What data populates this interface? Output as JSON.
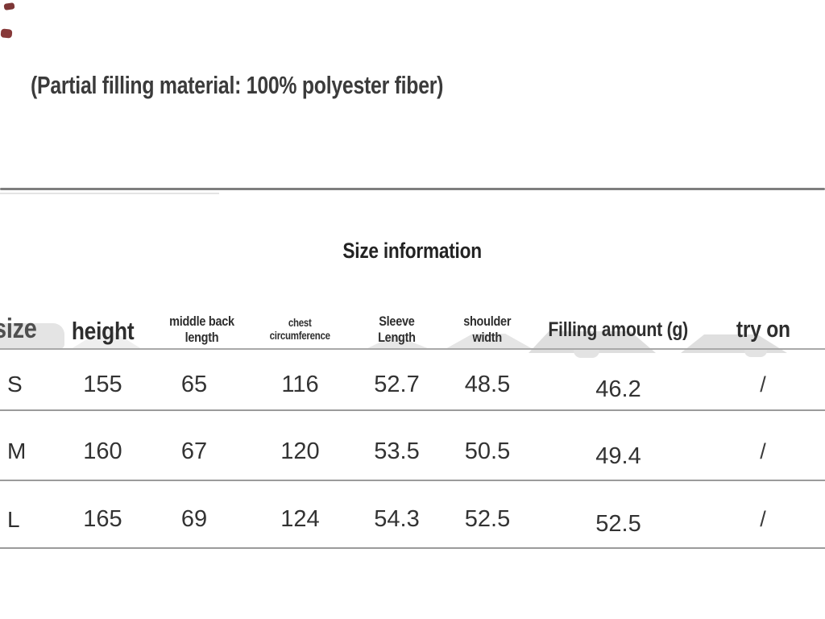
{
  "note": "(Partial filling material: 100% polyester fiber)",
  "section": {
    "title": "Size information"
  },
  "table": {
    "headers": [
      "size",
      "height",
      "middle back\nlength",
      "chest\ncircumference",
      "Sleeve\nLength",
      "shoulder\nwidth",
      "Filling amount (g)",
      "try on"
    ],
    "rows": [
      {
        "cells": [
          "S",
          "155",
          "65",
          "116",
          "52.7",
          "48.5",
          "46.2",
          "/"
        ]
      },
      {
        "cells": [
          "M",
          "160",
          "67",
          "120",
          "53.5",
          "50.5",
          "49.4",
          "/"
        ]
      },
      {
        "cells": [
          "L",
          "165",
          "69",
          "124",
          "54.3",
          "52.5",
          "52.5",
          "/"
        ]
      }
    ]
  },
  "colors": {
    "page_bg": "#ffffff",
    "heading_text": "#2e2e2e",
    "data_text": "#333333",
    "divider_gray": "#7e7e7e",
    "row_line_gray": "#9b9b9b",
    "decor_gray": "#e2e2e2",
    "corner_speck_red": "#6f2020"
  }
}
